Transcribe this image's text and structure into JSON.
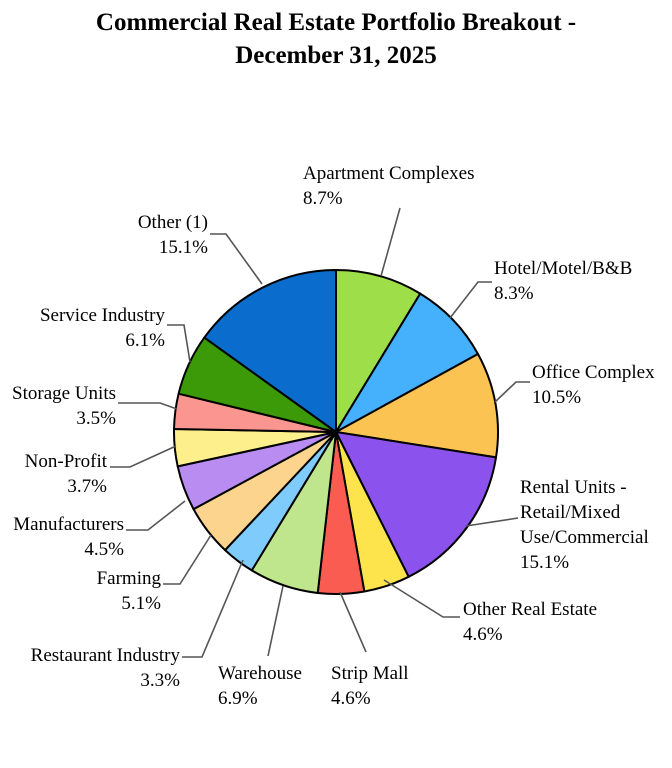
{
  "chart_data": {
    "type": "pie",
    "title_lines": [
      "Commercial Real Estate Portfolio Breakout -",
      "December 31, 2025"
    ],
    "slices": [
      {
        "label": "Apartment Complexes",
        "label_lines": [
          "Apartment Complexes"
        ],
        "pct": "8.7%",
        "value": 8.7,
        "color": "#9ede48"
      },
      {
        "label": "Hotel/Motel/B&B",
        "label_lines": [
          "Hotel/Motel/B&B"
        ],
        "pct": "8.3%",
        "value": 8.3,
        "color": "#45b0fb"
      },
      {
        "label": "Office Complex",
        "label_lines": [
          "Office Complex"
        ],
        "pct": "10.5%",
        "value": 10.5,
        "color": "#fbc352"
      },
      {
        "label": "Rental Units - Retail/Mixed Use/Commercial",
        "label_lines": [
          "Rental Units -",
          "Retail/Mixed",
          "Use/Commercial"
        ],
        "pct": "15.1%",
        "value": 15.1,
        "color": "#8c52ee"
      },
      {
        "label": "Other  Real Estate",
        "label_lines": [
          "Other  Real Estate"
        ],
        "pct": "4.6%",
        "value": 4.6,
        "color": "#fde44c"
      },
      {
        "label": "Strip Mall",
        "label_lines": [
          "Strip Mall"
        ],
        "pct": "4.6%",
        "value": 4.6,
        "color": "#fb5c52"
      },
      {
        "label": "Warehouse",
        "label_lines": [
          "Warehouse"
        ],
        "pct": "6.9%",
        "value": 6.9,
        "color": "#bfe68c"
      },
      {
        "label": "Restaurant Industry",
        "label_lines": [
          "Restaurant Industry"
        ],
        "pct": "3.3%",
        "value": 3.3,
        "color": "#7fcbfb"
      },
      {
        "label": "Farming",
        "label_lines": [
          "Farming"
        ],
        "pct": "5.1%",
        "value": 5.1,
        "color": "#fdd48e"
      },
      {
        "label": "Manufacturers",
        "label_lines": [
          "Manufacturers"
        ],
        "pct": "4.5%",
        "value": 4.5,
        "color": "#b98cf2"
      },
      {
        "label": "Non-Profit",
        "label_lines": [
          "Non-Profit"
        ],
        "pct": "3.7%",
        "value": 3.7,
        "color": "#fdef8c"
      },
      {
        "label": "Storage Units",
        "label_lines": [
          "Storage Units"
        ],
        "pct": "3.5%",
        "value": 3.5,
        "color": "#fb9590"
      },
      {
        "label": "Service Industry",
        "label_lines": [
          "Service Industry"
        ],
        "pct": "6.1%",
        "value": 6.1,
        "color": "#3c9a08"
      },
      {
        "label": "Other (1)",
        "label_lines": [
          "Other (1)"
        ],
        "pct": "15.1%",
        "value": 15.1,
        "color": "#0a6ccc"
      }
    ],
    "legend": "none",
    "start": "top, clockwise"
  }
}
